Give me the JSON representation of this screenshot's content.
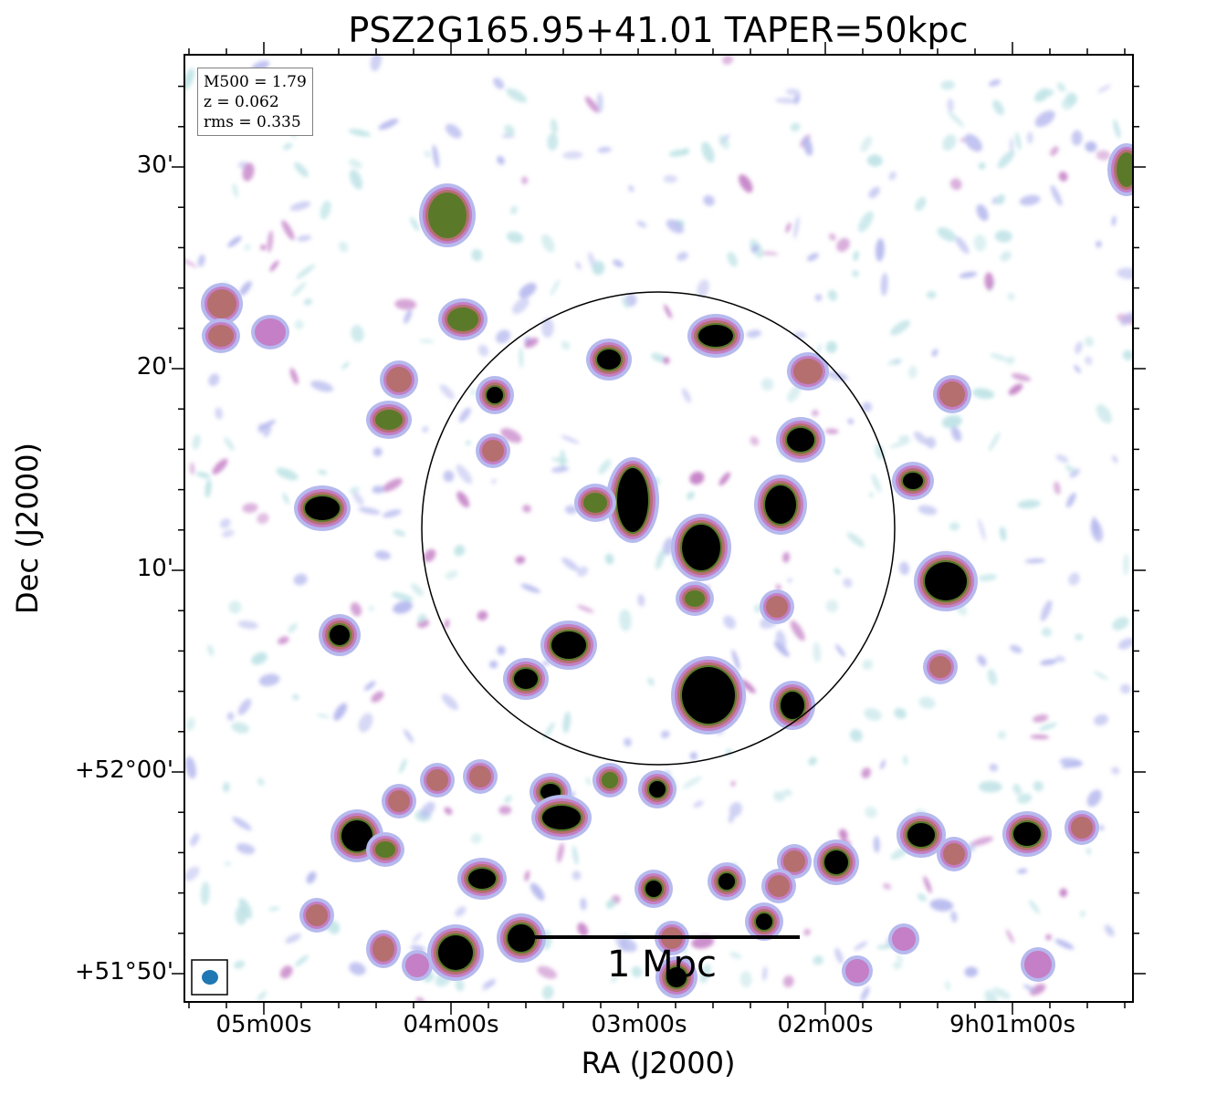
{
  "title": "PSZ2G165.95+41.01 TAPER=50kpc",
  "info": {
    "m500": "M500 = 1.79",
    "z": "z = 0.062",
    "rms": "rms = 0.335"
  },
  "axes": {
    "xlabel": "RA (J2000)",
    "ylabel": "Dec (J2000)",
    "yticks": [
      "30'",
      "20'",
      "10'",
      "+52°00'",
      "+51°50'"
    ],
    "xticks": [
      "05m00s",
      "04m00s",
      "03m00s",
      "02m00s",
      "9h01m00s"
    ]
  },
  "scale_bar": {
    "label": "1 Mpc"
  },
  "colors": {
    "faint": "#bfe3e6",
    "low": "#b6b9ee",
    "mid": "#c47fc6",
    "high": "#b56f6f",
    "peak": "#5a7a2a",
    "core": "#000000",
    "beam": "#1f77b4"
  }
}
